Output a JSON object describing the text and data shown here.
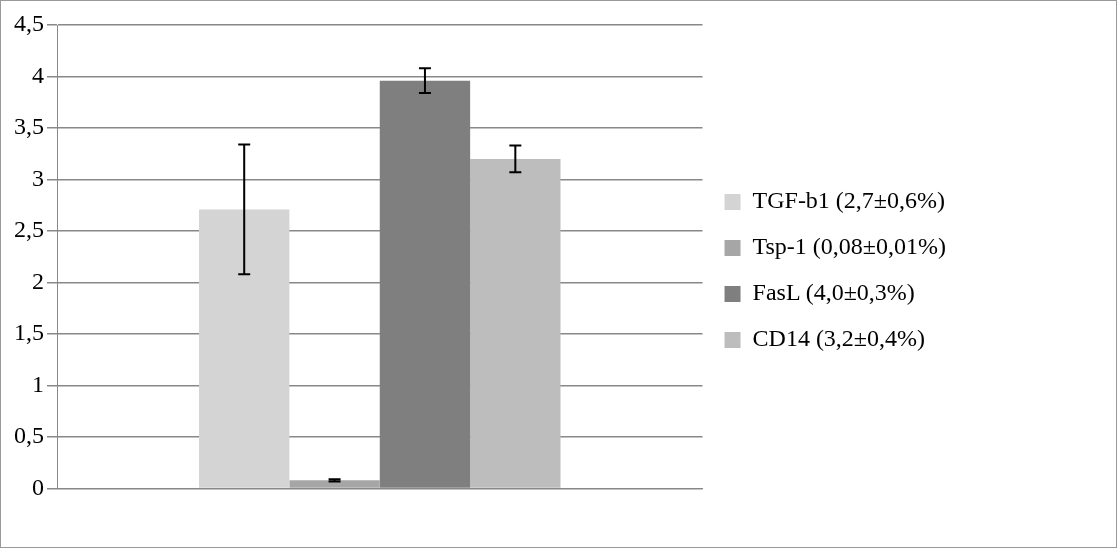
{
  "chart_data": {
    "type": "bar",
    "categories": [
      null
    ],
    "series": [
      {
        "name": "TGF-b1 (2,7±0,6%)",
        "color": "#d4d4d4",
        "values": [
          2.71
        ],
        "errors": [
          0.63
        ]
      },
      {
        "name": "Tsp-1 (0,08±0,01%)",
        "color": "#a6a6a6",
        "values": [
          0.08
        ],
        "errors": [
          0.01
        ]
      },
      {
        "name": "FasL (4,0±0,3%)",
        "color": "#7f7f7f",
        "values": [
          3.96
        ],
        "errors": [
          0.12
        ]
      },
      {
        "name": "CD14 (3,2±0,4%)",
        "color": "#bdbdbd",
        "values": [
          3.2
        ],
        "errors": [
          0.13
        ]
      }
    ],
    "ylim": [
      0,
      4.5
    ],
    "yticks": [
      0,
      {
        "value": 0.5,
        "label": "0,5"
      },
      1,
      {
        "value": 1.5,
        "label": "1,5"
      },
      2,
      {
        "value": 2.5,
        "label": "2,5"
      },
      3,
      {
        "value": 3.5,
        "label": "3,5"
      },
      4,
      {
        "value": 4.5,
        "label": "4,5"
      }
    ],
    "grid": "y",
    "legend": "right"
  }
}
